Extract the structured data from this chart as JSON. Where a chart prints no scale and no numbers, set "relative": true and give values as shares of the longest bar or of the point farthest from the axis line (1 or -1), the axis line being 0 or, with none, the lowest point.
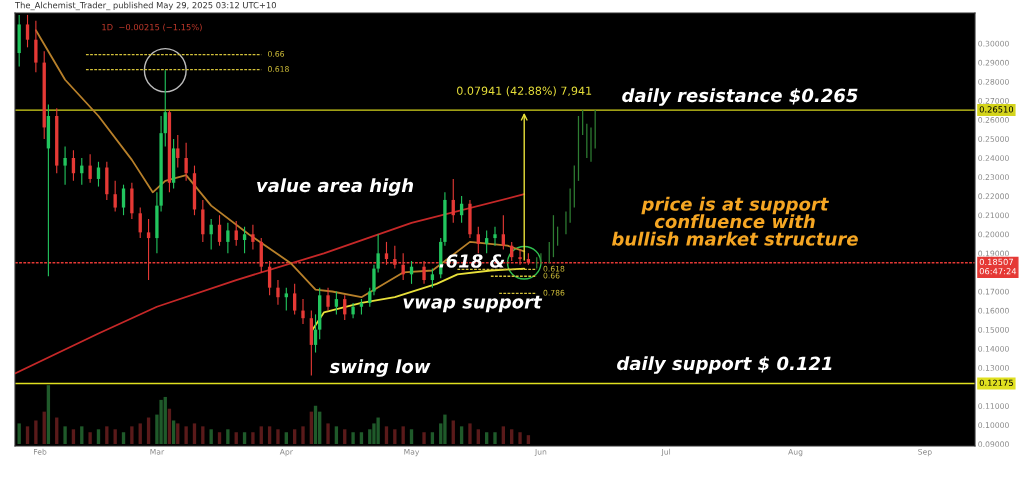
{
  "chart_data": [
    {
      "type": "candlestick",
      "title": "The_Alchemist_Trader_ published May 29, 2025 03:12 UTC+10",
      "subtitle": "1D  −0.00215 (−1.15%)",
      "x": [
        "2025-01-27",
        "2025-01-29",
        "2025-01-31",
        "2025-02-02",
        "2025-02-03",
        "2025-02-05",
        "2025-02-07",
        "2025-02-09",
        "2025-02-11",
        "2025-02-13",
        "2025-02-15",
        "2025-02-17",
        "2025-02-19",
        "2025-02-21",
        "2025-02-23",
        "2025-02-25",
        "2025-02-27",
        "2025-03-01",
        "2025-03-02",
        "2025-03-03",
        "2025-03-04",
        "2025-03-05",
        "2025-03-06",
        "2025-03-08",
        "2025-03-10",
        "2025-03-12",
        "2025-03-14",
        "2025-03-16",
        "2025-03-18",
        "2025-03-20",
        "2025-03-22",
        "2025-03-24",
        "2025-03-26",
        "2025-03-28",
        "2025-03-30",
        "2025-04-01",
        "2025-04-03",
        "2025-04-05",
        "2025-04-07",
        "2025-04-08",
        "2025-04-09",
        "2025-04-11",
        "2025-04-13",
        "2025-04-15",
        "2025-04-17",
        "2025-04-19",
        "2025-04-21",
        "2025-04-22",
        "2025-04-23",
        "2025-04-25",
        "2025-04-27",
        "2025-04-29",
        "2025-05-01",
        "2025-05-04",
        "2025-05-06",
        "2025-05-08",
        "2025-05-09",
        "2025-05-11",
        "2025-05-13",
        "2025-05-15",
        "2025-05-17",
        "2025-05-19",
        "2025-05-21",
        "2025-05-23",
        "2025-05-25",
        "2025-05-27",
        "2025-05-29"
      ],
      "ohlc": [
        [
          0.295,
          0.315,
          0.288,
          0.31
        ],
        [
          0.31,
          0.315,
          0.298,
          0.302
        ],
        [
          0.302,
          0.312,
          0.285,
          0.29
        ],
        [
          0.29,
          0.296,
          0.25,
          0.256
        ],
        [
          0.245,
          0.268,
          0.178,
          0.262
        ],
        [
          0.262,
          0.266,
          0.232,
          0.236
        ],
        [
          0.236,
          0.246,
          0.226,
          0.24
        ],
        [
          0.24,
          0.244,
          0.228,
          0.232
        ],
        [
          0.232,
          0.24,
          0.226,
          0.236
        ],
        [
          0.236,
          0.242,
          0.227,
          0.229
        ],
        [
          0.229,
          0.238,
          0.225,
          0.235
        ],
        [
          0.235,
          0.238,
          0.218,
          0.221
        ],
        [
          0.221,
          0.228,
          0.212,
          0.214
        ],
        [
          0.214,
          0.226,
          0.21,
          0.224
        ],
        [
          0.224,
          0.227,
          0.208,
          0.211
        ],
        [
          0.211,
          0.214,
          0.198,
          0.201
        ],
        [
          0.201,
          0.208,
          0.176,
          0.198
        ],
        [
          0.198,
          0.222,
          0.19,
          0.215
        ],
        [
          0.215,
          0.262,
          0.212,
          0.253
        ],
        [
          0.253,
          0.286,
          0.246,
          0.264
        ],
        [
          0.264,
          0.265,
          0.222,
          0.227
        ],
        [
          0.227,
          0.25,
          0.224,
          0.245
        ],
        [
          0.245,
          0.252,
          0.235,
          0.24
        ],
        [
          0.24,
          0.248,
          0.228,
          0.232
        ],
        [
          0.232,
          0.236,
          0.21,
          0.213
        ],
        [
          0.213,
          0.218,
          0.196,
          0.2
        ],
        [
          0.2,
          0.208,
          0.192,
          0.205
        ],
        [
          0.205,
          0.21,
          0.194,
          0.196
        ],
        [
          0.196,
          0.206,
          0.19,
          0.202
        ],
        [
          0.202,
          0.207,
          0.194,
          0.197
        ],
        [
          0.197,
          0.204,
          0.19,
          0.2
        ],
        [
          0.2,
          0.205,
          0.192,
          0.196
        ],
        [
          0.196,
          0.198,
          0.18,
          0.183
        ],
        [
          0.183,
          0.186,
          0.168,
          0.172
        ],
        [
          0.172,
          0.176,
          0.163,
          0.167
        ],
        [
          0.167,
          0.172,
          0.16,
          0.169
        ],
        [
          0.169,
          0.174,
          0.158,
          0.16
        ],
        [
          0.16,
          0.166,
          0.153,
          0.156
        ],
        [
          0.156,
          0.16,
          0.126,
          0.142
        ],
        [
          0.142,
          0.158,
          0.138,
          0.15
        ],
        [
          0.15,
          0.172,
          0.145,
          0.168
        ],
        [
          0.168,
          0.172,
          0.16,
          0.162
        ],
        [
          0.162,
          0.17,
          0.158,
          0.166
        ],
        [
          0.166,
          0.168,
          0.155,
          0.158
        ],
        [
          0.158,
          0.164,
          0.156,
          0.162
        ],
        [
          0.162,
          0.166,
          0.158,
          0.164
        ],
        [
          0.164,
          0.172,
          0.162,
          0.17
        ],
        [
          0.17,
          0.184,
          0.168,
          0.182
        ],
        [
          0.182,
          0.2,
          0.18,
          0.19
        ],
        [
          0.19,
          0.196,
          0.184,
          0.187
        ],
        [
          0.187,
          0.194,
          0.182,
          0.184
        ],
        [
          0.184,
          0.19,
          0.176,
          0.179
        ],
        [
          0.179,
          0.186,
          0.174,
          0.183
        ],
        [
          0.183,
          0.186,
          0.174,
          0.176
        ],
        [
          0.176,
          0.182,
          0.172,
          0.179
        ],
        [
          0.179,
          0.198,
          0.177,
          0.196
        ],
        [
          0.196,
          0.222,
          0.194,
          0.218
        ],
        [
          0.218,
          0.229,
          0.206,
          0.21
        ],
        [
          0.21,
          0.22,
          0.206,
          0.216
        ],
        [
          0.216,
          0.218,
          0.198,
          0.2
        ],
        [
          0.2,
          0.204,
          0.19,
          0.195
        ],
        [
          0.195,
          0.202,
          0.19,
          0.198
        ],
        [
          0.198,
          0.204,
          0.194,
          0.2
        ],
        [
          0.2,
          0.21,
          0.192,
          0.194
        ],
        [
          0.194,
          0.196,
          0.186,
          0.188
        ],
        [
          0.188,
          0.192,
          0.184,
          0.187
        ],
        [
          0.187,
          0.19,
          0.184,
          0.18507
        ]
      ],
      "series": [
        {
          "type": "candlestick",
          "color": "#2e7d32",
          "x": [
            "2025-05-31",
            "2025-06-01",
            "2025-06-03",
            "2025-06-04",
            "2025-06-05",
            "2025-06-07",
            "2025-06-08",
            "2025-06-09",
            "2025-06-10",
            "2025-06-11",
            "2025-06-12",
            "2025-06-13",
            "2025-06-14"
          ],
          "ohlc": [
            [
              0.182,
              0.188,
              0.182,
              0.188
            ],
            [
              0.184,
              0.19,
              0.184,
              0.19
            ],
            [
              0.185,
              0.196,
              0.185,
              0.196
            ],
            [
              0.188,
              0.21,
              0.188,
              0.21
            ],
            [
              0.194,
              0.204,
              0.194,
              0.204
            ],
            [
              0.2,
              0.212,
              0.2,
              0.212
            ],
            [
              0.206,
              0.224,
              0.206,
              0.224
            ],
            [
              0.214,
              0.236,
              0.214,
              0.236
            ],
            [
              0.228,
              0.262,
              0.228,
              0.262
            ],
            [
              0.252,
              0.2651,
              0.252,
              0.2651
            ],
            [
              0.24,
              0.258,
              0.24,
              0.258
            ],
            [
              0.238,
              0.256,
              0.238,
              0.256
            ],
            [
              0.245,
              0.2651,
              0.245,
              0.2651
            ]
          ]
        },
        {
          "type": "line",
          "color": "#c62828",
          "x": [
            "2025-01-26",
            "2025-02-15",
            "2025-03-01",
            "2025-03-20",
            "2025-04-10",
            "2025-05-01",
            "2025-05-28"
          ],
          "values": [
            0.127,
            0.148,
            0.162,
            0.176,
            0.19,
            0.206,
            0.221
          ]
        },
        {
          "type": "line",
          "color": "#b8802a",
          "x": [
            "2025-01-31",
            "2025-02-07",
            "2025-02-15",
            "2025-02-23",
            "2025-02-28",
            "2025-03-03",
            "2025-03-08",
            "2025-03-14",
            "2025-03-23",
            "2025-04-02",
            "2025-04-08",
            "2025-04-12",
            "2025-04-19",
            "2025-04-29",
            "2025-05-06",
            "2025-05-15",
            "2025-05-24",
            "2025-05-28"
          ],
          "values": [
            0.307,
            0.281,
            0.262,
            0.239,
            0.222,
            0.228,
            0.231,
            0.215,
            0.2,
            0.185,
            0.171,
            0.17,
            0.167,
            0.18,
            0.181,
            0.196,
            0.194,
            0.191
          ]
        },
        {
          "type": "line",
          "color": "#e8e03a",
          "x": [
            "2025-04-07",
            "2025-04-10",
            "2025-04-19",
            "2025-04-27",
            "2025-05-07",
            "2025-05-12",
            "2025-05-20",
            "2025-05-28"
          ],
          "values": [
            0.149,
            0.159,
            0.164,
            0.167,
            0.174,
            0.179,
            0.181,
            0.182
          ]
        },
        {
          "type": "line",
          "name": "0.66",
          "color": "#d4c23a",
          "line_style": "dotted",
          "x": [
            "2025-02-12",
            "2025-03-26"
          ],
          "values": [
            0.2942,
            0.2942
          ]
        },
        {
          "type": "line",
          "name": "0.618",
          "color": "#d4c23a",
          "line_style": "dotted",
          "x": [
            "2025-02-12",
            "2025-03-26"
          ],
          "values": [
            0.2863,
            0.2863
          ]
        },
        {
          "type": "line",
          "name": "0.618",
          "color": "#d4c23a",
          "line_style": "dotted",
          "x": [
            "2025-05-12",
            "2025-05-31"
          ],
          "values": [
            0.1816,
            0.1816
          ]
        },
        {
          "type": "line",
          "name": "0.66",
          "color": "#d4c23a",
          "line_style": "dotted",
          "x": [
            "2025-05-20",
            "2025-05-31"
          ],
          "values": [
            0.178,
            0.178
          ]
        },
        {
          "type": "line",
          "name": "0.786",
          "color": "#d4c23a",
          "line_style": "dotted",
          "x": [
            "2025-05-22",
            "2025-05-31"
          ],
          "values": [
            0.169,
            0.169
          ]
        }
      ],
      "ref_lines": [
        {
          "axis": "y",
          "value": 0.2651,
          "label": "0.26510",
          "color": "#d4d41c"
        },
        {
          "axis": "y",
          "value": 0.12175,
          "label": "0.12175",
          "color": "#e0e020"
        },
        {
          "axis": "y",
          "value": 0.18507,
          "label": "0.18507\n06:47:24",
          "color": "#e53935",
          "line_style": "dotted"
        }
      ],
      "annotations": [
        {
          "text": "0.07941 (42.88%) 7,941",
          "x": "2025-05-28",
          "y": 0.2651
        },
        "value area high",
        ".618 &\nvwap support",
        "swing low",
        "daily resistance $0.265",
        "daily support $ 0.121",
        "price is at support\nconfluence with\nbullish market structure"
      ],
      "xlim": [
        "2025-01-26",
        "2025-09-13"
      ],
      "xticks": [
        {
          "value": "2025-02-01",
          "label": "Feb"
        },
        {
          "value": "2025-03-01",
          "label": "Mar"
        },
        {
          "value": "2025-04-01",
          "label": "Apr"
        },
        {
          "value": "2025-05-01",
          "label": "May"
        },
        {
          "value": "2025-06-01",
          "label": "Jun"
        },
        {
          "value": "2025-07-01",
          "label": "Jul"
        },
        {
          "value": "2025-08-01",
          "label": "Aug"
        },
        {
          "value": "2025-09-01",
          "label": "Sep"
        }
      ],
      "ylim": [
        0.089,
        0.316
      ],
      "yticks": [
        {
          "value": 0.09,
          "label": "0.09000"
        },
        {
          "value": 0.1,
          "label": "0.10000"
        },
        {
          "value": 0.11,
          "label": "0.11000"
        },
        {
          "value": 0.13,
          "label": "0.13000"
        },
        {
          "value": 0.14,
          "label": "0.14000"
        },
        {
          "value": 0.15,
          "label": "0.15000"
        },
        {
          "value": 0.16,
          "label": "0.16000"
        },
        {
          "value": 0.17,
          "label": "0.17000"
        },
        {
          "value": 0.19,
          "label": "0.19000"
        },
        {
          "value": 0.2,
          "label": "0.20000"
        },
        {
          "value": 0.21,
          "label": "0.21000"
        },
        {
          "value": 0.22,
          "label": "0.22000"
        },
        {
          "value": 0.23,
          "label": "0.23000"
        },
        {
          "value": 0.24,
          "label": "0.24000"
        },
        {
          "value": 0.25,
          "label": "0.25000"
        },
        {
          "value": 0.26,
          "label": "0.26000"
        },
        {
          "value": 0.27,
          "label": "0.27000"
        },
        {
          "value": 0.28,
          "label": "0.28000"
        },
        {
          "value": 0.29,
          "label": "0.29000"
        },
        {
          "value": 0.3,
          "label": "0.30000"
        }
      ],
      "grid": false
    },
    {
      "type": "bar",
      "relative": true,
      "tick_labels": false,
      "x": [
        "2025-01-27",
        "2025-01-29",
        "2025-01-31",
        "2025-02-02",
        "2025-02-03",
        "2025-02-05",
        "2025-02-07",
        "2025-02-09",
        "2025-02-11",
        "2025-02-13",
        "2025-02-15",
        "2025-02-17",
        "2025-02-19",
        "2025-02-21",
        "2025-02-23",
        "2025-02-25",
        "2025-02-27",
        "2025-03-01",
        "2025-03-02",
        "2025-03-03",
        "2025-03-04",
        "2025-03-05",
        "2025-03-06",
        "2025-03-08",
        "2025-03-10",
        "2025-03-12",
        "2025-03-14",
        "2025-03-16",
        "2025-03-18",
        "2025-03-20",
        "2025-03-22",
        "2025-03-24",
        "2025-03-26",
        "2025-03-28",
        "2025-03-30",
        "2025-04-01",
        "2025-04-03",
        "2025-04-05",
        "2025-04-07",
        "2025-04-08",
        "2025-04-09",
        "2025-04-11",
        "2025-04-13",
        "2025-04-15",
        "2025-04-17",
        "2025-04-19",
        "2025-04-21",
        "2025-04-22",
        "2025-04-23",
        "2025-04-25",
        "2025-04-27",
        "2025-04-29",
        "2025-05-01",
        "2025-05-04",
        "2025-05-06",
        "2025-05-08",
        "2025-05-09",
        "2025-05-11",
        "2025-05-13",
        "2025-05-15",
        "2025-05-17",
        "2025-05-19",
        "2025-05-21",
        "2025-05-23",
        "2025-05-25",
        "2025-05-27",
        "2025-05-29"
      ],
      "values": [
        0.35,
        0.3,
        0.4,
        0.55,
        1.0,
        0.45,
        0.3,
        0.25,
        0.3,
        0.2,
        0.25,
        0.3,
        0.25,
        0.2,
        0.3,
        0.35,
        0.45,
        0.5,
        0.75,
        0.8,
        0.6,
        0.4,
        0.35,
        0.3,
        0.35,
        0.3,
        0.25,
        0.2,
        0.25,
        0.2,
        0.2,
        0.2,
        0.3,
        0.3,
        0.25,
        0.2,
        0.25,
        0.3,
        0.55,
        0.65,
        0.55,
        0.35,
        0.3,
        0.25,
        0.2,
        0.2,
        0.25,
        0.35,
        0.45,
        0.3,
        0.25,
        0.3,
        0.25,
        0.2,
        0.2,
        0.35,
        0.5,
        0.4,
        0.3,
        0.35,
        0.25,
        0.2,
        0.2,
        0.3,
        0.25,
        0.2,
        0.15
      ],
      "xlim": [
        "2025-01-26",
        "2025-09-13"
      ]
    }
  ]
}
